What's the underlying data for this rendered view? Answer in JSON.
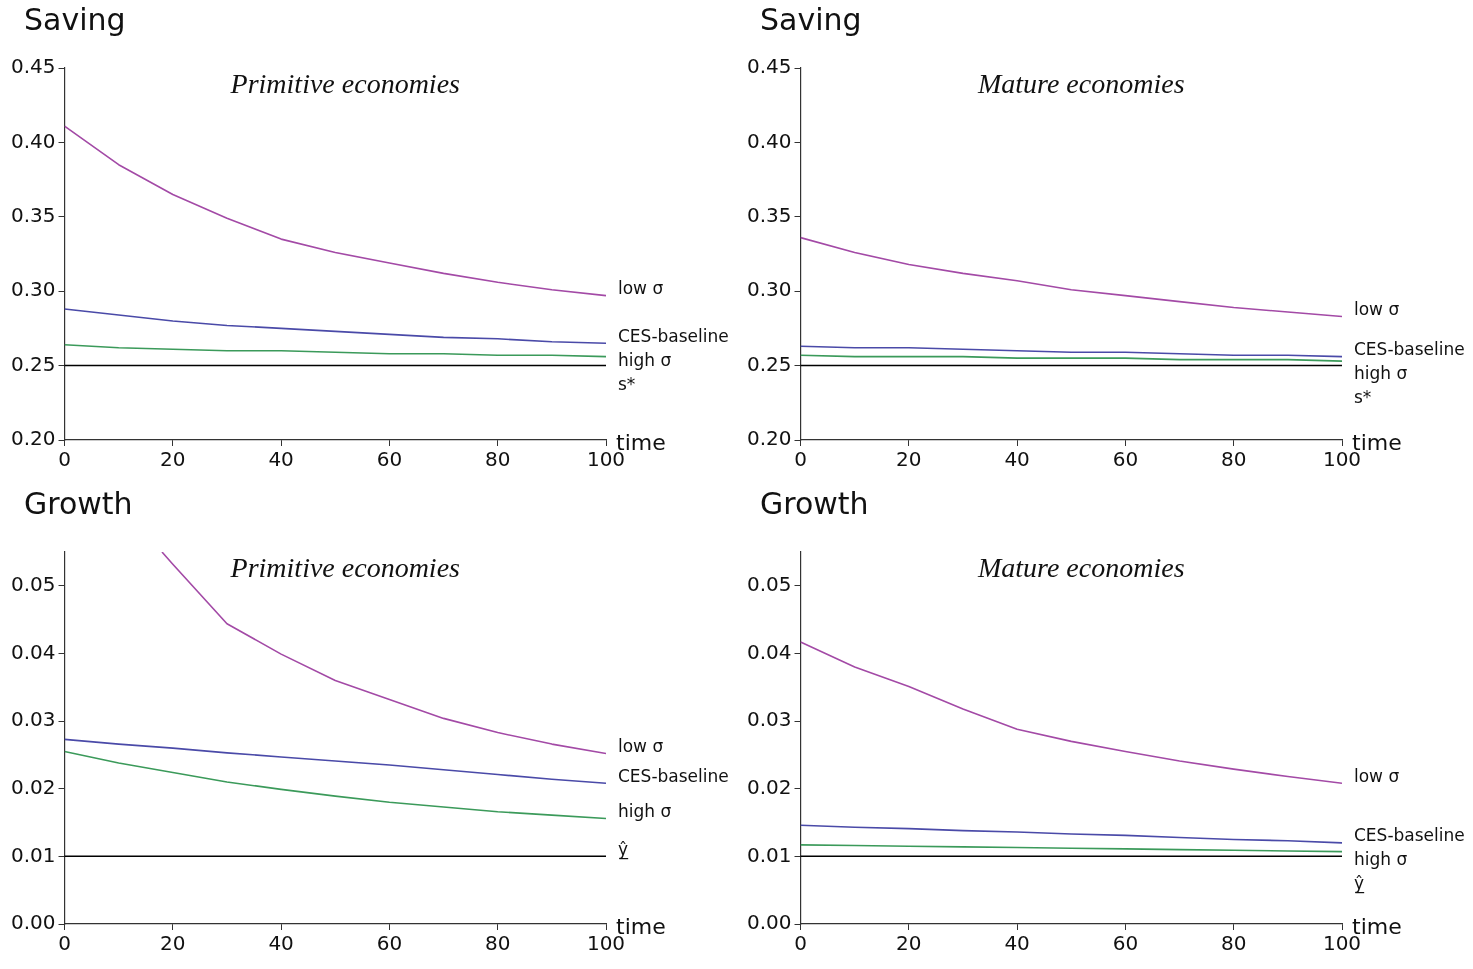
{
  "chart_data": [
    {
      "type": "line",
      "title": "Saving",
      "subtitle": "Primitive economies",
      "xlabel": "time",
      "x": [
        0,
        10,
        20,
        30,
        40,
        50,
        60,
        70,
        80,
        90,
        100
      ],
      "xlim": [
        0,
        100
      ],
      "xticks": [
        0,
        20,
        40,
        60,
        80,
        100
      ],
      "ylim": [
        0.2,
        0.45
      ],
      "yticks": [
        {
          "value": 0.2,
          "label": "0.20"
        },
        {
          "value": 0.25,
          "label": "0.25"
        },
        {
          "value": 0.3,
          "label": "0.30"
        },
        {
          "value": 0.35,
          "label": "0.35"
        },
        {
          "value": 0.4,
          "label": "0.40"
        },
        {
          "value": 0.45,
          "label": "0.45"
        }
      ],
      "grid": false,
      "legend": false,
      "marker": "none",
      "line_style": "solid",
      "series": [
        {
          "name": "low σ",
          "color": "#a34aa6",
          "values": [
            0.411,
            0.385,
            0.365,
            0.349,
            0.335,
            0.326,
            0.319,
            0.312,
            0.306,
            0.301,
            0.297
          ]
        },
        {
          "name": "CES-baseline",
          "color": "#4a4aa8",
          "values": [
            0.288,
            0.284,
            0.28,
            0.277,
            0.275,
            0.273,
            0.271,
            0.269,
            0.268,
            0.266,
            0.265
          ]
        },
        {
          "name": "high σ",
          "color": "#3b9a5a",
          "values": [
            0.264,
            0.262,
            0.261,
            0.26,
            0.26,
            0.259,
            0.258,
            0.258,
            0.257,
            0.257,
            0.256
          ]
        }
      ],
      "ref_lines": [
        {
          "axis": "y",
          "value": 0.25,
          "label": "s*",
          "color": "#000000"
        }
      ]
    },
    {
      "type": "line",
      "title": "Saving",
      "subtitle": "Mature economies",
      "xlabel": "time",
      "x": [
        0,
        10,
        20,
        30,
        40,
        50,
        60,
        70,
        80,
        90,
        100
      ],
      "xlim": [
        0,
        100
      ],
      "xticks": [
        0,
        20,
        40,
        60,
        80,
        100
      ],
      "ylim": [
        0.2,
        0.45
      ],
      "yticks": [
        {
          "value": 0.2,
          "label": "0.20"
        },
        {
          "value": 0.25,
          "label": "0.25"
        },
        {
          "value": 0.3,
          "label": "0.30"
        },
        {
          "value": 0.35,
          "label": "0.35"
        },
        {
          "value": 0.4,
          "label": "0.40"
        },
        {
          "value": 0.45,
          "label": "0.45"
        }
      ],
      "grid": false,
      "legend": false,
      "marker": "none",
      "line_style": "solid",
      "series": [
        {
          "name": "low σ",
          "color": "#a34aa6",
          "values": [
            0.336,
            0.326,
            0.318,
            0.312,
            0.307,
            0.301,
            0.297,
            0.293,
            0.289,
            0.286,
            0.283
          ]
        },
        {
          "name": "CES-baseline",
          "color": "#4a4aa8",
          "values": [
            0.263,
            0.262,
            0.262,
            0.261,
            0.26,
            0.259,
            0.259,
            0.258,
            0.257,
            0.257,
            0.256
          ]
        },
        {
          "name": "high σ",
          "color": "#3b9a5a",
          "values": [
            0.257,
            0.256,
            0.256,
            0.256,
            0.255,
            0.255,
            0.255,
            0.254,
            0.254,
            0.254,
            0.253
          ]
        }
      ],
      "ref_lines": [
        {
          "axis": "y",
          "value": 0.25,
          "label": "s*",
          "color": "#000000"
        }
      ]
    },
    {
      "type": "line",
      "title": "Growth",
      "subtitle": "Primitive economies",
      "xlabel": "time",
      "x": [
        0,
        10,
        20,
        30,
        40,
        50,
        60,
        70,
        80,
        90,
        100
      ],
      "xlim": [
        0,
        100
      ],
      "xticks": [
        0,
        20,
        40,
        60,
        80,
        100
      ],
      "ylim": [
        0,
        0.055
      ],
      "yticks": [
        {
          "value": 0,
          "label": "0.00"
        },
        {
          "value": 0.01,
          "label": "0.01"
        },
        {
          "value": 0.02,
          "label": "0.02"
        },
        {
          "value": 0.03,
          "label": "0.03"
        },
        {
          "value": 0.04,
          "label": "0.04"
        },
        {
          "value": 0.05,
          "label": "0.05"
        }
      ],
      "grid": false,
      "legend": false,
      "marker": "none",
      "line_style": "solid",
      "series": [
        {
          "name": "low σ",
          "color": "#a34aa6",
          "x": [
            18,
            20,
            30,
            40,
            50,
            60,
            70,
            80,
            90,
            100
          ],
          "values": [
            0.055,
            0.0532,
            0.0444,
            0.0399,
            0.036,
            0.0332,
            0.0304,
            0.0283,
            0.0266,
            0.0252
          ]
        },
        {
          "name": "CES-baseline",
          "color": "#4a4aa8",
          "values": [
            0.0273,
            0.0266,
            0.026,
            0.0253,
            0.0247,
            0.0241,
            0.0235,
            0.0228,
            0.0221,
            0.0214,
            0.0208
          ]
        },
        {
          "name": "high σ",
          "color": "#3b9a5a",
          "values": [
            0.0255,
            0.0238,
            0.0224,
            0.021,
            0.0199,
            0.0189,
            0.018,
            0.0173,
            0.0166,
            0.0161,
            0.0156
          ]
        }
      ],
      "ref_lines": [
        {
          "axis": "y",
          "value": 0.01,
          "label": "ŷ̲",
          "color": "#000000"
        }
      ]
    },
    {
      "type": "line",
      "title": "Growth",
      "subtitle": "Mature economies",
      "xlabel": "time",
      "x": [
        0,
        10,
        20,
        30,
        40,
        50,
        60,
        70,
        80,
        90,
        100
      ],
      "xlim": [
        0,
        100
      ],
      "xticks": [
        0,
        20,
        40,
        60,
        80,
        100
      ],
      "ylim": [
        0,
        0.055
      ],
      "yticks": [
        {
          "value": 0,
          "label": "0.00"
        },
        {
          "value": 0.01,
          "label": "0.01"
        },
        {
          "value": 0.02,
          "label": "0.02"
        },
        {
          "value": 0.03,
          "label": "0.03"
        },
        {
          "value": 0.04,
          "label": "0.04"
        },
        {
          "value": 0.05,
          "label": "0.05"
        }
      ],
      "grid": false,
      "legend": false,
      "marker": "none",
      "line_style": "solid",
      "series": [
        {
          "name": "low σ",
          "color": "#a34aa6",
          "values": [
            0.0417,
            0.038,
            0.0351,
            0.0318,
            0.0288,
            0.027,
            0.0255,
            0.0241,
            0.0229,
            0.0218,
            0.0208
          ]
        },
        {
          "name": "CES-baseline",
          "color": "#4a4aa8",
          "values": [
            0.0146,
            0.0143,
            0.0141,
            0.0138,
            0.0136,
            0.0133,
            0.0131,
            0.0128,
            0.0125,
            0.0123,
            0.012
          ]
        },
        {
          "name": "high σ",
          "color": "#3b9a5a",
          "values": [
            0.0117,
            0.0116,
            0.0115,
            0.0114,
            0.0113,
            0.0112,
            0.0111,
            0.011,
            0.0109,
            0.0108,
            0.0107
          ]
        }
      ],
      "ref_lines": [
        {
          "axis": "y",
          "value": 0.01,
          "label": "ŷ̲",
          "color": "#000000"
        }
      ]
    }
  ]
}
